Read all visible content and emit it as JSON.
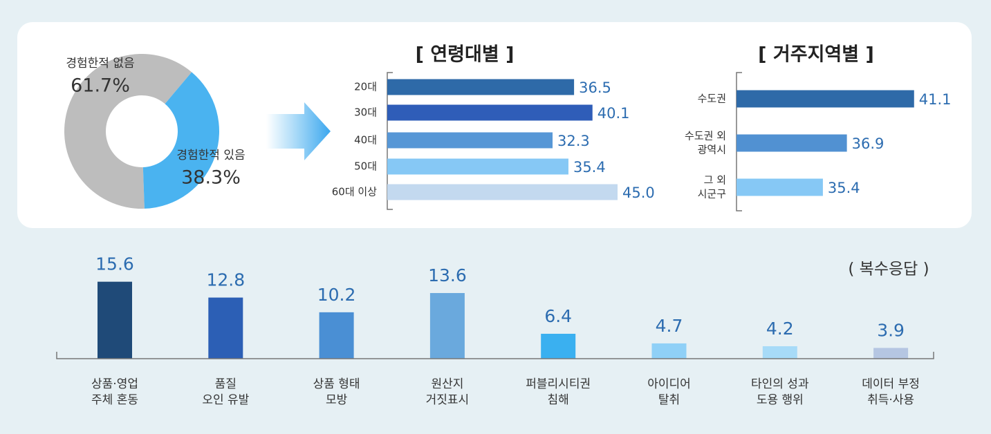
{
  "chart_data": [
    {
      "type": "pie",
      "categories": [
        "경험한적 없음",
        "경험한적 있음"
      ],
      "values": [
        61.7,
        38.3
      ],
      "value_labels": [
        "61.7%",
        "38.3%"
      ],
      "colors": [
        "#bdbdbd",
        "#4ab3f0"
      ]
    },
    {
      "type": "hbar",
      "title": "[ 연령대별 ]",
      "categories": [
        [
          "20대"
        ],
        [
          "30대"
        ],
        [
          "40대"
        ],
        [
          "50대"
        ],
        [
          "60대 이상"
        ]
      ],
      "values": [
        36.5,
        40.1,
        32.3,
        35.4,
        45.0
      ],
      "value_labels": [
        "36.5",
        "40.1",
        "32.3",
        "35.4",
        "45.0"
      ],
      "colors": [
        "#2e6aa8",
        "#2f5db8",
        "#5797d6",
        "#86c8f5",
        "#c3d9ef"
      ],
      "xlim": [
        0,
        50
      ]
    },
    {
      "type": "hbar",
      "title": "[ 거주지역별 ]",
      "categories": [
        [
          "수도권"
        ],
        [
          "수도권 외",
          "광역시"
        ],
        [
          "그 외",
          "시군구"
        ]
      ],
      "values": [
        41.1,
        36.9,
        35.4
      ],
      "colors": [
        "#2e6aa8",
        "#5191d2",
        "#86c8f5"
      ],
      "xlim": [
        30,
        45
      ]
    },
    {
      "type": "bar",
      "subtitle": "( 복수응답 )",
      "categories": [
        [
          "상품·영업",
          "주체 혼동"
        ],
        [
          "품질",
          "오인 유발"
        ],
        [
          "상품 형태",
          "모방"
        ],
        [
          "원산지",
          "거짓표시"
        ],
        [
          "퍼블리시티권",
          "침해"
        ],
        [
          "아이디어",
          "탈취"
        ],
        [
          "타인의 성과",
          "도용 행위"
        ],
        [
          "데이터 부정",
          "취득·사용"
        ]
      ],
      "values": [
        15.6,
        12.8,
        10.2,
        13.6,
        6.4,
        4.7,
        4.2,
        3.9
      ],
      "colors": [
        "#1f4a78",
        "#2c5fb5",
        "#4a8fd4",
        "#6aa9dd",
        "#3ab0f0",
        "#8fd0f7",
        "#a7dbf8",
        "#b5c6e2"
      ],
      "ylim": [
        2,
        18
      ]
    }
  ]
}
